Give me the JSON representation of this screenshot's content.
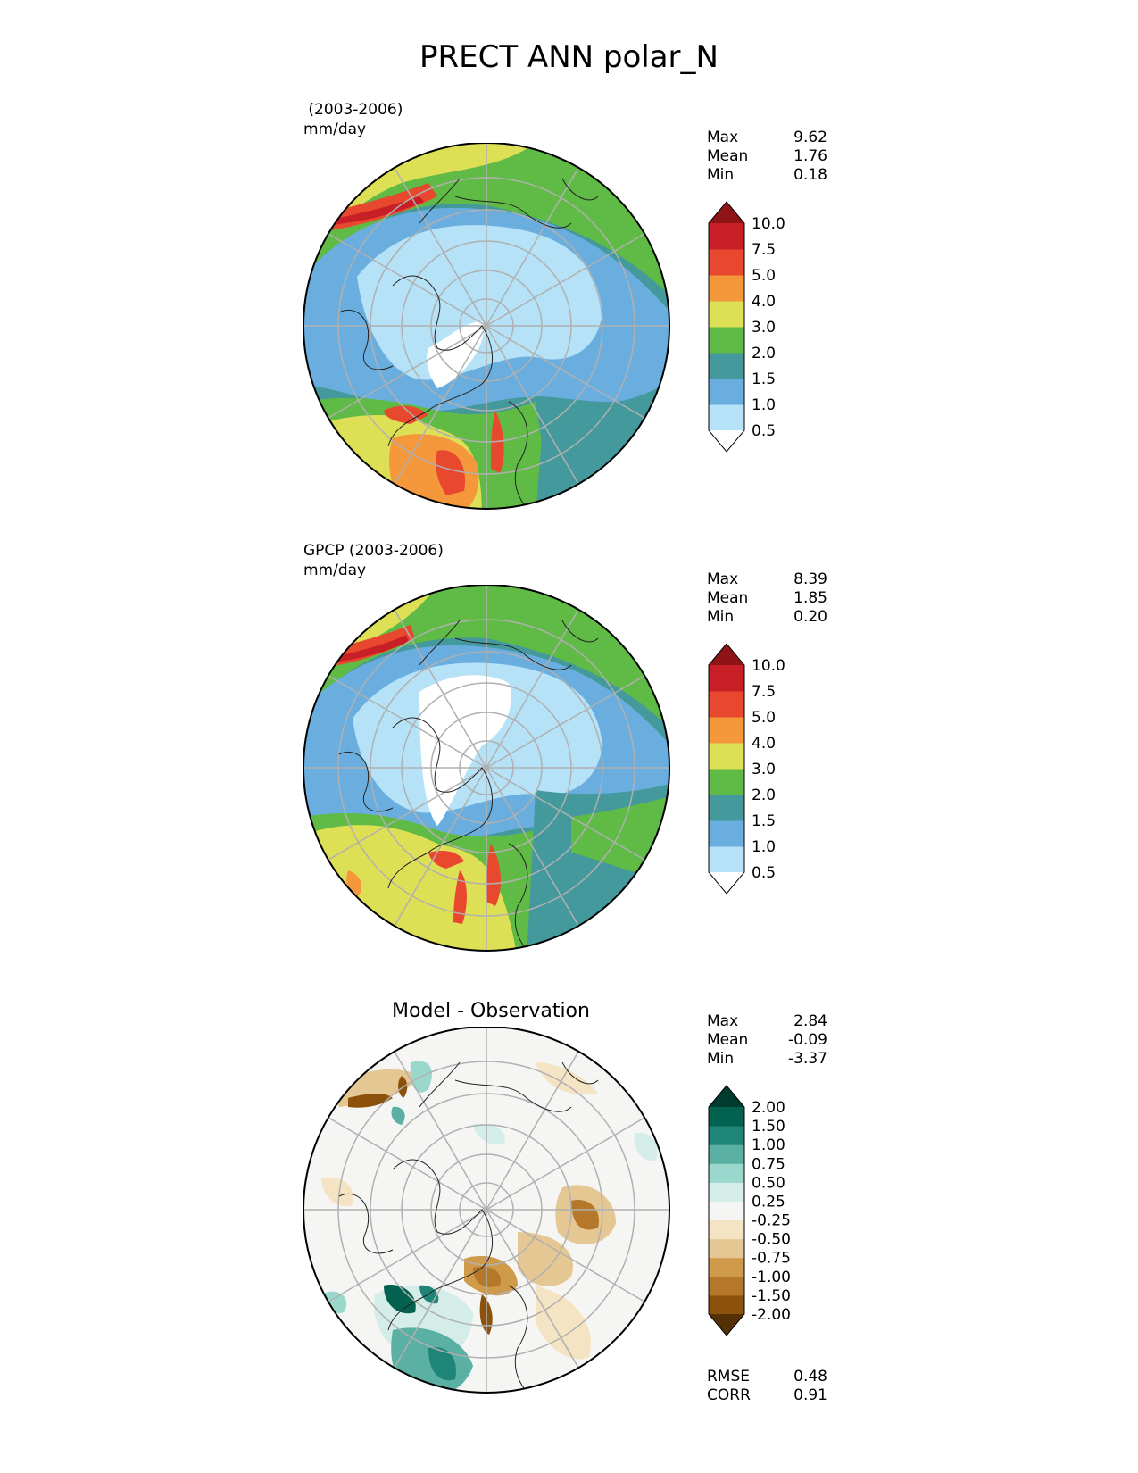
{
  "title": "PRECT ANN polar_N",
  "panels": [
    {
      "id": "test",
      "title_line1": " (2003-2006)",
      "title_line2": "mm/day",
      "stats": [
        {
          "label": "Max",
          "value": "9.62"
        },
        {
          "label": "Mean",
          "value": "1.76"
        },
        {
          "label": "Min",
          "value": "0.18"
        }
      ],
      "colorbar": {
        "labels": [
          "10.0",
          "7.5",
          "5.0",
          "4.0",
          "3.0",
          "2.0",
          "1.5",
          "1.0",
          "0.5"
        ],
        "colors": [
          "#ffffff",
          "#b5e2f7",
          "#6aaee0",
          "#44999c",
          "#60bb46",
          "#dddf55",
          "#f4983b",
          "#e8482e",
          "#c81e26",
          "#8e1418"
        ]
      }
    },
    {
      "id": "ref",
      "title_line1": "GPCP (2003-2006)",
      "title_line2": "mm/day",
      "stats": [
        {
          "label": "Max",
          "value": "8.39"
        },
        {
          "label": "Mean",
          "value": "1.85"
        },
        {
          "label": "Min",
          "value": "0.20"
        }
      ],
      "colorbar": {
        "labels": [
          "10.0",
          "7.5",
          "5.0",
          "4.0",
          "3.0",
          "2.0",
          "1.5",
          "1.0",
          "0.5"
        ],
        "colors": [
          "#ffffff",
          "#b5e2f7",
          "#6aaee0",
          "#44999c",
          "#60bb46",
          "#dddf55",
          "#f4983b",
          "#e8482e",
          "#c81e26",
          "#8e1418"
        ]
      }
    },
    {
      "id": "diff",
      "title": "Model - Observation",
      "stats": [
        {
          "label": "Max",
          "value": "2.84"
        },
        {
          "label": "Mean",
          "value": "-0.09"
        },
        {
          "label": "Min",
          "value": "-3.37"
        }
      ],
      "metrics": [
        {
          "label": "RMSE",
          "value": "0.48"
        },
        {
          "label": "CORR",
          "value": "0.91"
        }
      ],
      "colorbar": {
        "labels": [
          "2.00",
          "1.50",
          "1.00",
          "0.75",
          "0.50",
          "0.25",
          "-0.25",
          "-0.50",
          "-0.75",
          "-1.00",
          "-1.50",
          "-2.00"
        ],
        "colors": [
          "#543005",
          "#8c510a",
          "#b5782a",
          "#d09a4b",
          "#e5c793",
          "#f5e4c3",
          "#f5f5f3",
          "#d4ede8",
          "#9ad7cd",
          "#5ab1a3",
          "#208579",
          "#02624f",
          "#003b30"
        ]
      }
    }
  ]
}
